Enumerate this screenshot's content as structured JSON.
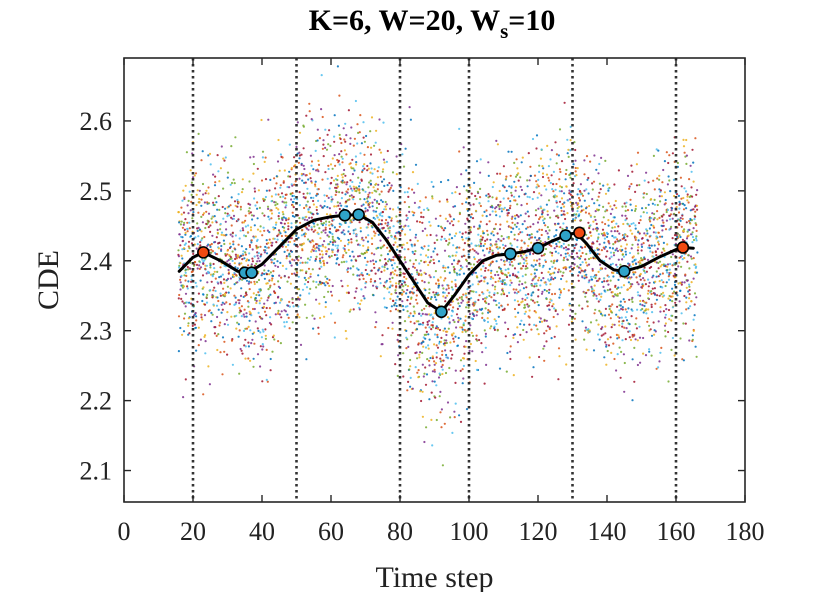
{
  "chart_data": {
    "type": "scatter",
    "title_main": "K=6, W=20, W",
    "title_sub": "s",
    "title_tail": "=10",
    "xlabel": "Time step",
    "ylabel": "CDE",
    "xlim": [
      0,
      180
    ],
    "ylim": [
      2.055,
      2.69
    ],
    "x_ticks": [
      0,
      20,
      40,
      60,
      80,
      100,
      120,
      140,
      160,
      180
    ],
    "x_tick_labels": [
      "0",
      "20",
      "40",
      "60",
      "80",
      "100",
      "120",
      "140",
      "160",
      "180"
    ],
    "y_ticks": [
      2.1,
      2.2,
      2.3,
      2.4,
      2.5,
      2.6
    ],
    "y_tick_labels": [
      "2.1",
      "2.2",
      "2.3",
      "2.4",
      "2.5",
      "2.6"
    ],
    "vertical_dotted_lines": [
      20,
      50,
      80,
      100,
      130,
      160
    ],
    "scatter_x_range": [
      16,
      166
    ],
    "mean_curve": {
      "x": [
        16,
        20,
        23,
        28,
        33,
        36,
        40,
        45,
        50,
        55,
        60,
        64,
        68,
        72,
        76,
        80,
        84,
        88,
        92,
        96,
        100,
        104,
        108,
        112,
        116,
        120,
        124,
        128,
        131,
        134,
        138,
        142,
        145,
        150,
        155,
        160,
        162,
        165
      ],
      "y": [
        2.385,
        2.405,
        2.412,
        2.4,
        2.385,
        2.383,
        2.395,
        2.42,
        2.445,
        2.458,
        2.463,
        2.465,
        2.466,
        2.455,
        2.43,
        2.4,
        2.37,
        2.34,
        2.327,
        2.352,
        2.38,
        2.4,
        2.408,
        2.41,
        2.413,
        2.418,
        2.428,
        2.436,
        2.44,
        2.425,
        2.4,
        2.387,
        2.385,
        2.392,
        2.405,
        2.416,
        2.419,
        2.418
      ],
      "color": "#000000"
    },
    "minima_markers": {
      "x": [
        35,
        37,
        64,
        68,
        92,
        112,
        120,
        128,
        145
      ],
      "y": [
        2.383,
        2.383,
        2.465,
        2.466,
        2.327,
        2.41,
        2.418,
        2.436,
        2.385
      ],
      "color": "#2fa3c9"
    },
    "maxima_markers": {
      "x": [
        23,
        132,
        162
      ],
      "y": [
        2.412,
        2.44,
        2.419
      ],
      "color": "#f04a12"
    },
    "scatter_colors": [
      "#0072BD",
      "#D95319",
      "#EDB120",
      "#7E2F8E",
      "#77AC30",
      "#4DBEEE",
      "#A2142F"
    ]
  }
}
